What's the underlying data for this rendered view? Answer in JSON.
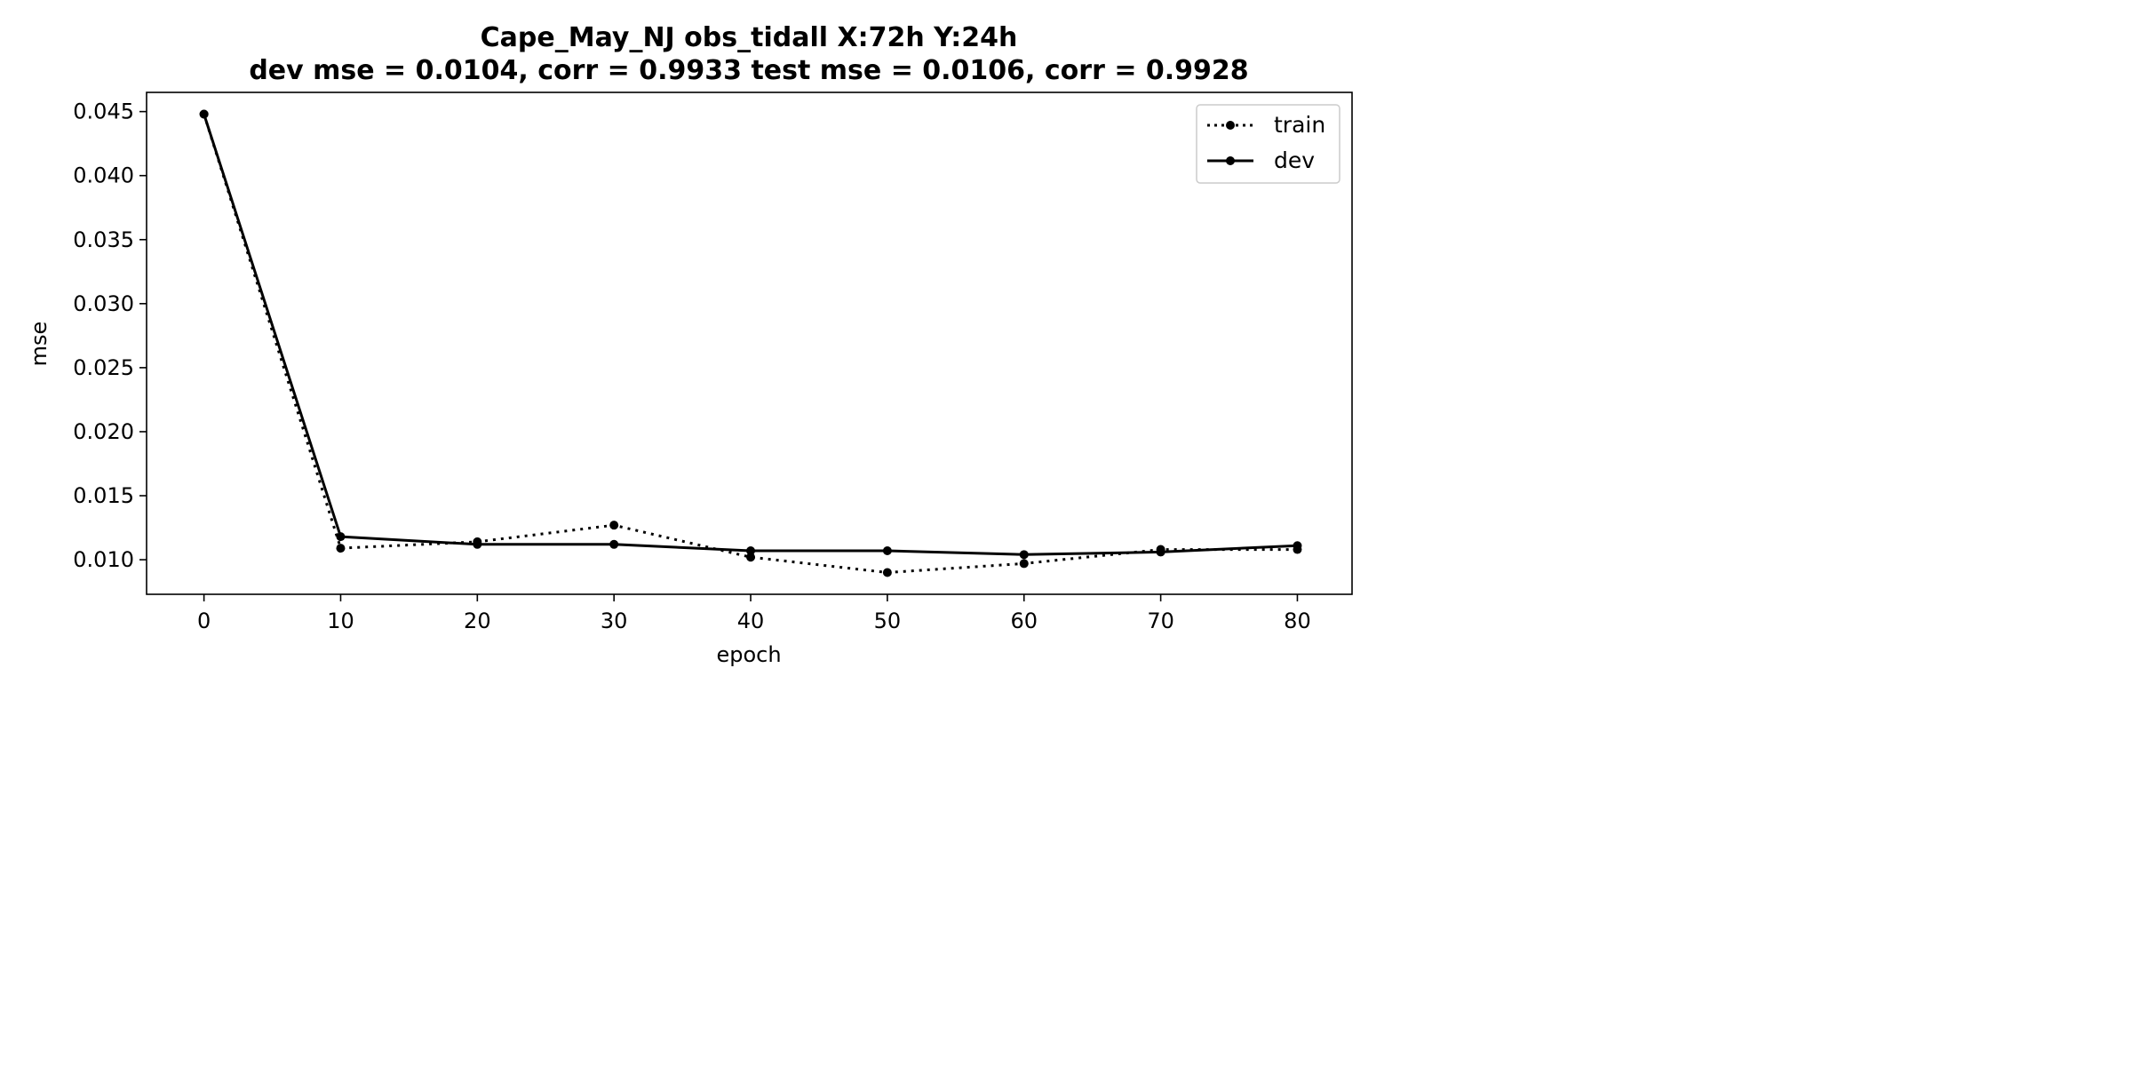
{
  "chart_data": {
    "type": "line",
    "title_line1": "Cape_May_NJ   obs_tidall   X:72h   Y:24h",
    "title_line2": "dev mse = 0.0104, corr = 0.9933   test mse = 0.0106, corr = 0.9928",
    "xlabel": "epoch",
    "ylabel": "mse",
    "xlim": [
      -4.2,
      84
    ],
    "ylim": [
      0.0073,
      0.0465
    ],
    "xticks": [
      0,
      10,
      20,
      30,
      40,
      50,
      60,
      70,
      80
    ],
    "xtick_labels": [
      "0",
      "10",
      "20",
      "30",
      "40",
      "50",
      "60",
      "70",
      "80"
    ],
    "yticks": [
      0.01,
      0.015,
      0.02,
      0.025,
      0.03,
      0.035,
      0.04,
      0.045
    ],
    "ytick_labels": [
      "0.010",
      "0.015",
      "0.020",
      "0.025",
      "0.030",
      "0.035",
      "0.040",
      "0.045"
    ],
    "grid": false,
    "legend_position": "top-right",
    "x": [
      0,
      10,
      20,
      30,
      40,
      50,
      60,
      70,
      80
    ],
    "series": [
      {
        "name": "train",
        "line_style": "dotted",
        "color": "#000000",
        "values": [
          0.0448,
          0.0109,
          0.0114,
          0.0127,
          0.0102,
          0.009,
          0.0097,
          0.0108,
          0.0108
        ]
      },
      {
        "name": "dev",
        "line_style": "solid",
        "color": "#000000",
        "values": [
          0.0448,
          0.0118,
          0.0112,
          0.0112,
          0.0107,
          0.0107,
          0.0104,
          0.0106,
          0.0111
        ]
      }
    ]
  }
}
